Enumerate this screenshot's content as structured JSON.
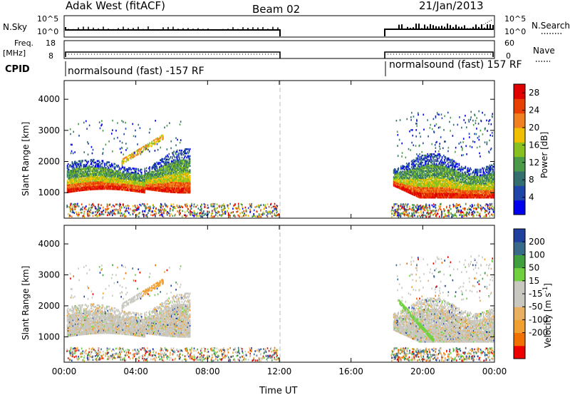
{
  "header": {
    "station": "Adak West (fitACF)",
    "beam": "Beam 02",
    "date": "21/Jan/2013"
  },
  "noise_panel": {
    "left_label": "N.Sky",
    "right_label": "N.Search",
    "left_ticks": [
      "10^5",
      "10^0"
    ],
    "right_ticks": [
      "10^5",
      "10^0"
    ]
  },
  "freq_panel": {
    "left_label_1": "Freq.",
    "left_label_2": "[MHz]",
    "left_ticks": [
      "18",
      "8"
    ],
    "right_label": "Nave",
    "right_ticks": [
      "60",
      "0"
    ]
  },
  "cpid_panel": {
    "label": "CPID",
    "segments": [
      "normalsound (fast) -157 RF",
      "normalsound (fast) 157 RF"
    ]
  },
  "x_axis": {
    "label": "Time UT",
    "ticks": [
      "00:00",
      "04:00",
      "08:00",
      "12:00",
      "16:00",
      "20:00",
      "00:00"
    ]
  },
  "colors": {
    "power_scale": [
      "#0000ee",
      "#2045a8",
      "#356e6e",
      "#4a9a4a",
      "#88c020",
      "#f0c000",
      "#f08020",
      "#e84000",
      "#e00000"
    ],
    "velocity_scale": [
      "#ee0000",
      "#f07000",
      "#f0a030",
      "#e8b060",
      "#c8c8c0",
      "#c8c8c0",
      "#70d040",
      "#40a040",
      "#3a6a8a",
      "#2040a0"
    ]
  },
  "chart_data": [
    {
      "type": "heatmap",
      "name": "power",
      "ylabel": "Slant Range [km]",
      "xlabel": "Time UT",
      "xlim": [
        0,
        24
      ],
      "ylim": [
        180,
        4600
      ],
      "yticks": [
        "1000",
        "2000",
        "3000",
        "4000"
      ],
      "colorbar": {
        "label": "Power [dB]",
        "ticks": [
          "4",
          "8",
          "12",
          "16",
          "20",
          "24",
          "28"
        ],
        "range": [
          0,
          30
        ]
      },
      "bands": [
        {
          "t": [
            0.1,
            7.0
          ],
          "r_start": 950,
          "r_end": 1400,
          "value": 26
        },
        {
          "t": [
            0.1,
            6.8
          ],
          "r_start": 1400,
          "r_end": 2100,
          "value": 12
        },
        {
          "t": [
            18.3,
            24.0
          ],
          "r_start": 850,
          "r_end": 1200,
          "value": 26
        },
        {
          "t": [
            18.3,
            24.0
          ],
          "r_start": 1200,
          "r_end": 2200,
          "value": 10
        }
      ]
    },
    {
      "type": "heatmap",
      "name": "velocity",
      "ylabel": "Slant Range [km]",
      "xlabel": "Time UT",
      "xlim": [
        0,
        24
      ],
      "ylim": [
        180,
        4600
      ],
      "yticks": [
        "1000",
        "2000",
        "3000",
        "4000"
      ],
      "colorbar": {
        "label": "Velocity [m s^-1]",
        "ticks": [
          "200",
          "100",
          "50",
          "15",
          "-15",
          "-50",
          "-100",
          "-200"
        ],
        "range": [
          -250,
          250
        ]
      },
      "bands": [
        {
          "t": [
            0.1,
            7.0
          ],
          "r_start": 800,
          "r_end": 2200,
          "value": 0
        },
        {
          "t": [
            18.3,
            24.0
          ],
          "r_start": 800,
          "r_end": 2000,
          "value": 0
        }
      ]
    }
  ]
}
